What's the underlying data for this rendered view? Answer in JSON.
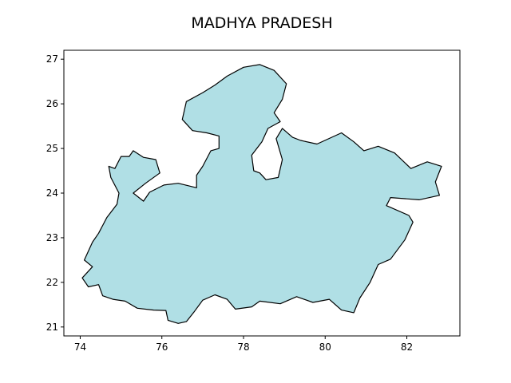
{
  "chart_data": {
    "type": "map",
    "title": "MADHYA PRADESH",
    "xlabel": "",
    "ylabel": "",
    "xlim": [
      73.6,
      83.3
    ],
    "ylim": [
      20.8,
      27.2
    ],
    "x_ticks": [
      74,
      76,
      78,
      80,
      82
    ],
    "y_ticks": [
      21,
      22,
      23,
      24,
      25,
      26,
      27
    ],
    "grid": false,
    "fill_color": "#b0dfe5",
    "edge_color": "#000000",
    "boundary": [
      [
        74.1,
        22.5
      ],
      [
        74.3,
        22.35
      ],
      [
        74.05,
        22.1
      ],
      [
        74.2,
        21.9
      ],
      [
        74.45,
        21.95
      ],
      [
        74.55,
        21.7
      ],
      [
        74.8,
        21.62
      ],
      [
        75.1,
        21.58
      ],
      [
        75.4,
        21.42
      ],
      [
        75.8,
        21.38
      ],
      [
        76.1,
        21.37
      ],
      [
        76.15,
        21.15
      ],
      [
        76.4,
        21.08
      ],
      [
        76.6,
        21.12
      ],
      [
        76.8,
        21.35
      ],
      [
        77.0,
        21.6
      ],
      [
        77.3,
        21.72
      ],
      [
        77.6,
        21.62
      ],
      [
        77.8,
        21.4
      ],
      [
        78.2,
        21.45
      ],
      [
        78.4,
        21.58
      ],
      [
        78.9,
        21.52
      ],
      [
        79.3,
        21.68
      ],
      [
        79.7,
        21.55
      ],
      [
        80.1,
        21.62
      ],
      [
        80.4,
        21.38
      ],
      [
        80.7,
        21.32
      ],
      [
        80.85,
        21.65
      ],
      [
        81.1,
        22.0
      ],
      [
        81.3,
        22.4
      ],
      [
        81.6,
        22.52
      ],
      [
        81.95,
        22.95
      ],
      [
        82.15,
        23.35
      ],
      [
        82.05,
        23.5
      ],
      [
        81.5,
        23.72
      ],
      [
        81.6,
        23.9
      ],
      [
        82.3,
        23.85
      ],
      [
        82.8,
        23.95
      ],
      [
        82.7,
        24.25
      ],
      [
        82.85,
        24.6
      ],
      [
        82.5,
        24.7
      ],
      [
        82.1,
        24.55
      ],
      [
        81.7,
        24.9
      ],
      [
        81.3,
        25.05
      ],
      [
        80.95,
        24.95
      ],
      [
        80.7,
        25.15
      ],
      [
        80.4,
        25.35
      ],
      [
        79.8,
        25.1
      ],
      [
        79.4,
        25.18
      ],
      [
        79.2,
        25.25
      ],
      [
        78.95,
        25.45
      ],
      [
        78.8,
        25.22
      ],
      [
        78.95,
        24.75
      ],
      [
        78.85,
        24.35
      ],
      [
        78.55,
        24.3
      ],
      [
        78.4,
        24.45
      ],
      [
        78.25,
        24.5
      ],
      [
        78.2,
        24.85
      ],
      [
        78.45,
        25.15
      ],
      [
        78.6,
        25.45
      ],
      [
        78.9,
        25.6
      ],
      [
        78.75,
        25.8
      ],
      [
        78.95,
        26.1
      ],
      [
        79.05,
        26.45
      ],
      [
        78.75,
        26.75
      ],
      [
        78.4,
        26.88
      ],
      [
        78.0,
        26.82
      ],
      [
        77.6,
        26.62
      ],
      [
        77.3,
        26.42
      ],
      [
        77.0,
        26.25
      ],
      [
        76.6,
        26.05
      ],
      [
        76.5,
        25.65
      ],
      [
        76.75,
        25.4
      ],
      [
        77.1,
        25.35
      ],
      [
        77.4,
        25.28
      ],
      [
        77.4,
        25.0
      ],
      [
        77.2,
        24.95
      ],
      [
        77.0,
        24.6
      ],
      [
        76.85,
        24.4
      ],
      [
        76.85,
        24.12
      ],
      [
        76.4,
        24.22
      ],
      [
        76.05,
        24.18
      ],
      [
        75.7,
        24.02
      ],
      [
        75.55,
        23.82
      ],
      [
        75.3,
        24.0
      ],
      [
        75.6,
        24.22
      ],
      [
        75.95,
        24.45
      ],
      [
        75.85,
        24.75
      ],
      [
        75.55,
        24.8
      ],
      [
        75.3,
        24.95
      ],
      [
        75.2,
        24.82
      ],
      [
        75.0,
        24.82
      ],
      [
        74.85,
        24.55
      ],
      [
        74.7,
        24.6
      ],
      [
        74.75,
        24.35
      ],
      [
        74.95,
        24.0
      ],
      [
        74.9,
        23.75
      ],
      [
        74.65,
        23.45
      ],
      [
        74.45,
        23.1
      ],
      [
        74.3,
        22.9
      ],
      [
        74.1,
        22.5
      ]
    ]
  }
}
